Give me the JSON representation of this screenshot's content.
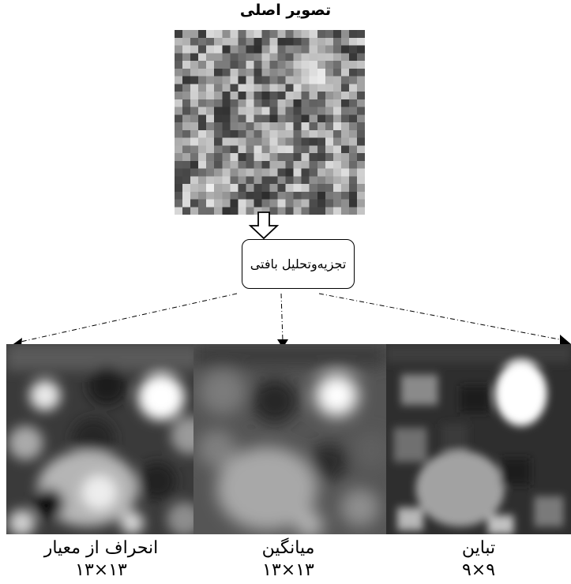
{
  "title": "تصویر اصلی",
  "process_label": "تجزیه‌وتحلیل بافتی",
  "outputs": [
    {
      "label": "انحراف از معیار",
      "size": "۱۳×۱۳"
    },
    {
      "label": "میانگین",
      "size": "۱۳×۱۳"
    },
    {
      "label": "تباین",
      "size": "۹×۹"
    }
  ]
}
